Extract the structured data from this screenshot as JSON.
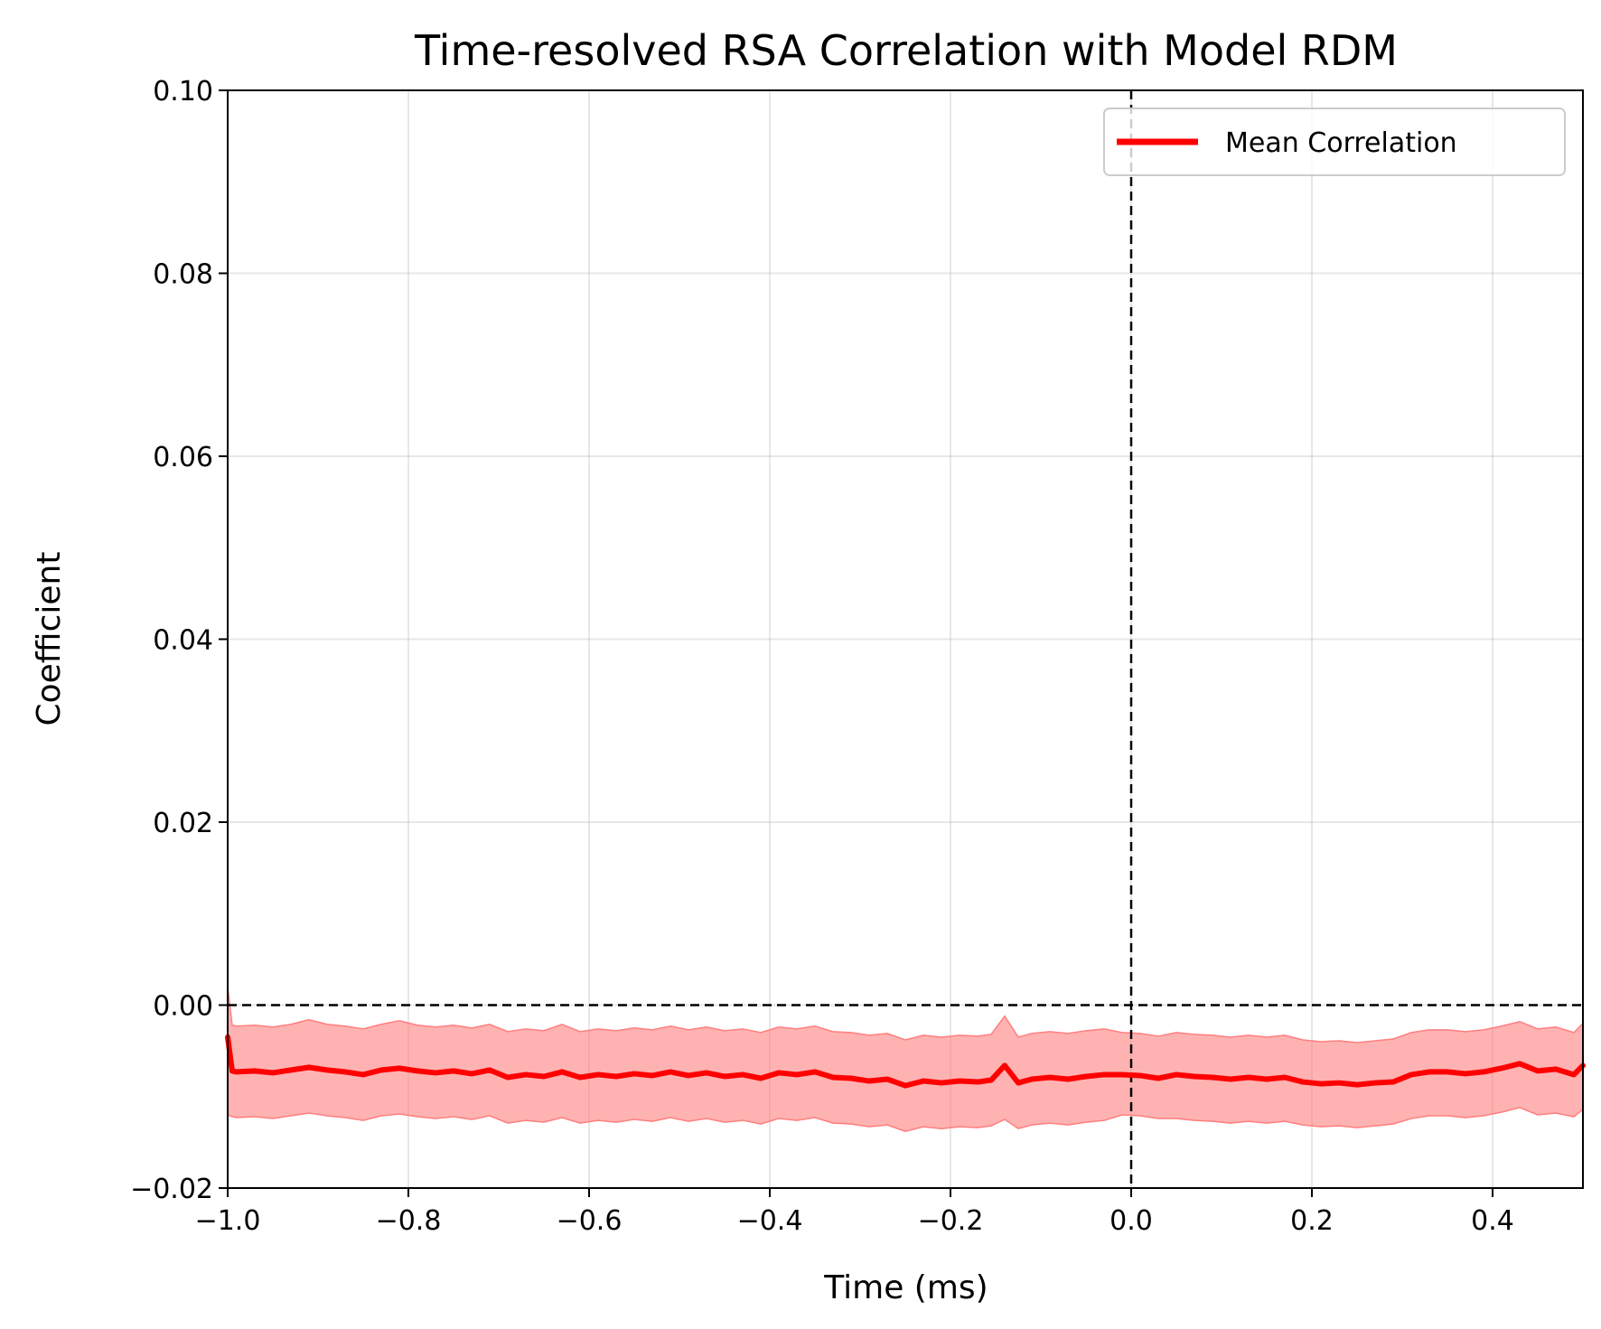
{
  "chart_data": {
    "type": "line",
    "title": "Time-resolved RSA Correlation with Model RDM",
    "xlabel": "Time (ms)",
    "ylabel": "Coefficient",
    "xlim": [
      -1.0,
      0.5
    ],
    "ylim": [
      -0.02,
      0.1
    ],
    "grid": true,
    "legend_position": "top-right",
    "x_ticks": [
      -1.0,
      -0.8,
      -0.6,
      -0.4,
      -0.2,
      0.0,
      0.2,
      0.4
    ],
    "x_tick_labels": [
      "−1.0",
      "−0.8",
      "−0.6",
      "−0.4",
      "−0.2",
      "0.0",
      "0.2",
      "0.4"
    ],
    "y_ticks": [
      -0.02,
      0.0,
      0.02,
      0.04,
      0.06,
      0.08,
      0.1
    ],
    "y_tick_labels": [
      "−0.02",
      "0.00",
      "0.02",
      "0.04",
      "0.06",
      "0.08",
      "0.10"
    ],
    "reference_lines": [
      {
        "orientation": "horizontal",
        "value": 0.0,
        "style": "dashed",
        "color": "#000000"
      },
      {
        "orientation": "vertical",
        "value": 0.0,
        "style": "dashed",
        "color": "#000000"
      }
    ],
    "series": [
      {
        "name": "Mean Correlation",
        "color": "#ff0000",
        "band_color": "#ff7f7f",
        "x": [
          -1.0,
          -0.995,
          -0.99,
          -0.97,
          -0.95,
          -0.93,
          -0.91,
          -0.89,
          -0.87,
          -0.85,
          -0.83,
          -0.81,
          -0.79,
          -0.77,
          -0.75,
          -0.73,
          -0.71,
          -0.69,
          -0.67,
          -0.65,
          -0.63,
          -0.61,
          -0.59,
          -0.57,
          -0.55,
          -0.53,
          -0.51,
          -0.49,
          -0.47,
          -0.45,
          -0.43,
          -0.41,
          -0.39,
          -0.37,
          -0.35,
          -0.33,
          -0.31,
          -0.29,
          -0.27,
          -0.25,
          -0.23,
          -0.21,
          -0.19,
          -0.17,
          -0.155,
          -0.14,
          -0.125,
          -0.11,
          -0.09,
          -0.07,
          -0.05,
          -0.03,
          -0.01,
          0.01,
          0.03,
          0.05,
          0.07,
          0.09,
          0.11,
          0.13,
          0.15,
          0.17,
          0.19,
          0.21,
          0.23,
          0.25,
          0.27,
          0.29,
          0.31,
          0.33,
          0.35,
          0.37,
          0.39,
          0.41,
          0.43,
          0.45,
          0.47,
          0.49,
          0.5
        ],
        "values": [
          -0.0035,
          -0.0072,
          -0.0073,
          -0.0072,
          -0.0074,
          -0.0071,
          -0.0068,
          -0.0071,
          -0.0073,
          -0.0076,
          -0.0071,
          -0.0069,
          -0.0072,
          -0.0074,
          -0.0072,
          -0.0075,
          -0.0071,
          -0.0079,
          -0.0076,
          -0.0078,
          -0.0073,
          -0.0079,
          -0.0076,
          -0.0078,
          -0.0075,
          -0.0077,
          -0.0073,
          -0.0077,
          -0.0074,
          -0.0078,
          -0.0076,
          -0.008,
          -0.0074,
          -0.0076,
          -0.0073,
          -0.0079,
          -0.008,
          -0.0083,
          -0.0081,
          -0.0088,
          -0.0083,
          -0.0085,
          -0.0083,
          -0.0084,
          -0.0082,
          -0.0066,
          -0.0085,
          -0.0081,
          -0.0079,
          -0.0081,
          -0.0078,
          -0.0076,
          -0.0076,
          -0.0077,
          -0.008,
          -0.0076,
          -0.0078,
          -0.0079,
          -0.0081,
          -0.0079,
          -0.0081,
          -0.0079,
          -0.0084,
          -0.0086,
          -0.0085,
          -0.0087,
          -0.0085,
          -0.0084,
          -0.0076,
          -0.0073,
          -0.0073,
          -0.0075,
          -0.0073,
          -0.0069,
          -0.0064,
          -0.0072,
          -0.007,
          -0.0076,
          -0.0066
        ],
        "lower": [
          -0.012,
          -0.0122,
          -0.0123,
          -0.0122,
          -0.0124,
          -0.0121,
          -0.0118,
          -0.0121,
          -0.0123,
          -0.0126,
          -0.0121,
          -0.0119,
          -0.0122,
          -0.0124,
          -0.0122,
          -0.0125,
          -0.0121,
          -0.0129,
          -0.0126,
          -0.0128,
          -0.0123,
          -0.0129,
          -0.0126,
          -0.0128,
          -0.0125,
          -0.0127,
          -0.0123,
          -0.0127,
          -0.0124,
          -0.0128,
          -0.0126,
          -0.013,
          -0.0124,
          -0.0126,
          -0.0123,
          -0.0129,
          -0.013,
          -0.0133,
          -0.0131,
          -0.0138,
          -0.0133,
          -0.0135,
          -0.0133,
          -0.0134,
          -0.0132,
          -0.0125,
          -0.0135,
          -0.0131,
          -0.0129,
          -0.0131,
          -0.0128,
          -0.0126,
          -0.012,
          -0.0121,
          -0.0124,
          -0.0124,
          -0.0126,
          -0.0127,
          -0.0129,
          -0.0127,
          -0.0129,
          -0.0127,
          -0.0131,
          -0.0133,
          -0.0132,
          -0.0134,
          -0.0132,
          -0.013,
          -0.0124,
          -0.0121,
          -0.0121,
          -0.0123,
          -0.0121,
          -0.0117,
          -0.0112,
          -0.012,
          -0.0118,
          -0.0122,
          -0.0114
        ],
        "upper": [
          0.002,
          -0.0022,
          -0.0023,
          -0.0022,
          -0.0024,
          -0.0021,
          -0.0016,
          -0.0021,
          -0.0023,
          -0.0026,
          -0.0021,
          -0.0017,
          -0.0022,
          -0.0024,
          -0.0022,
          -0.0025,
          -0.0021,
          -0.0029,
          -0.0026,
          -0.0028,
          -0.0021,
          -0.0029,
          -0.0026,
          -0.0028,
          -0.0025,
          -0.0027,
          -0.0023,
          -0.0027,
          -0.0024,
          -0.0028,
          -0.0026,
          -0.003,
          -0.0024,
          -0.0026,
          -0.0023,
          -0.0029,
          -0.003,
          -0.0033,
          -0.0031,
          -0.0038,
          -0.0033,
          -0.0035,
          -0.0033,
          -0.0034,
          -0.0032,
          -0.0012,
          -0.0035,
          -0.0031,
          -0.0029,
          -0.0031,
          -0.0028,
          -0.0026,
          -0.003,
          -0.0031,
          -0.0034,
          -0.003,
          -0.0032,
          -0.0033,
          -0.0035,
          -0.0033,
          -0.0035,
          -0.0033,
          -0.0038,
          -0.004,
          -0.0039,
          -0.0041,
          -0.0039,
          -0.0037,
          -0.003,
          -0.0027,
          -0.0027,
          -0.0029,
          -0.0027,
          -0.0023,
          -0.0018,
          -0.0026,
          -0.0024,
          -0.003,
          -0.002
        ]
      }
    ]
  }
}
